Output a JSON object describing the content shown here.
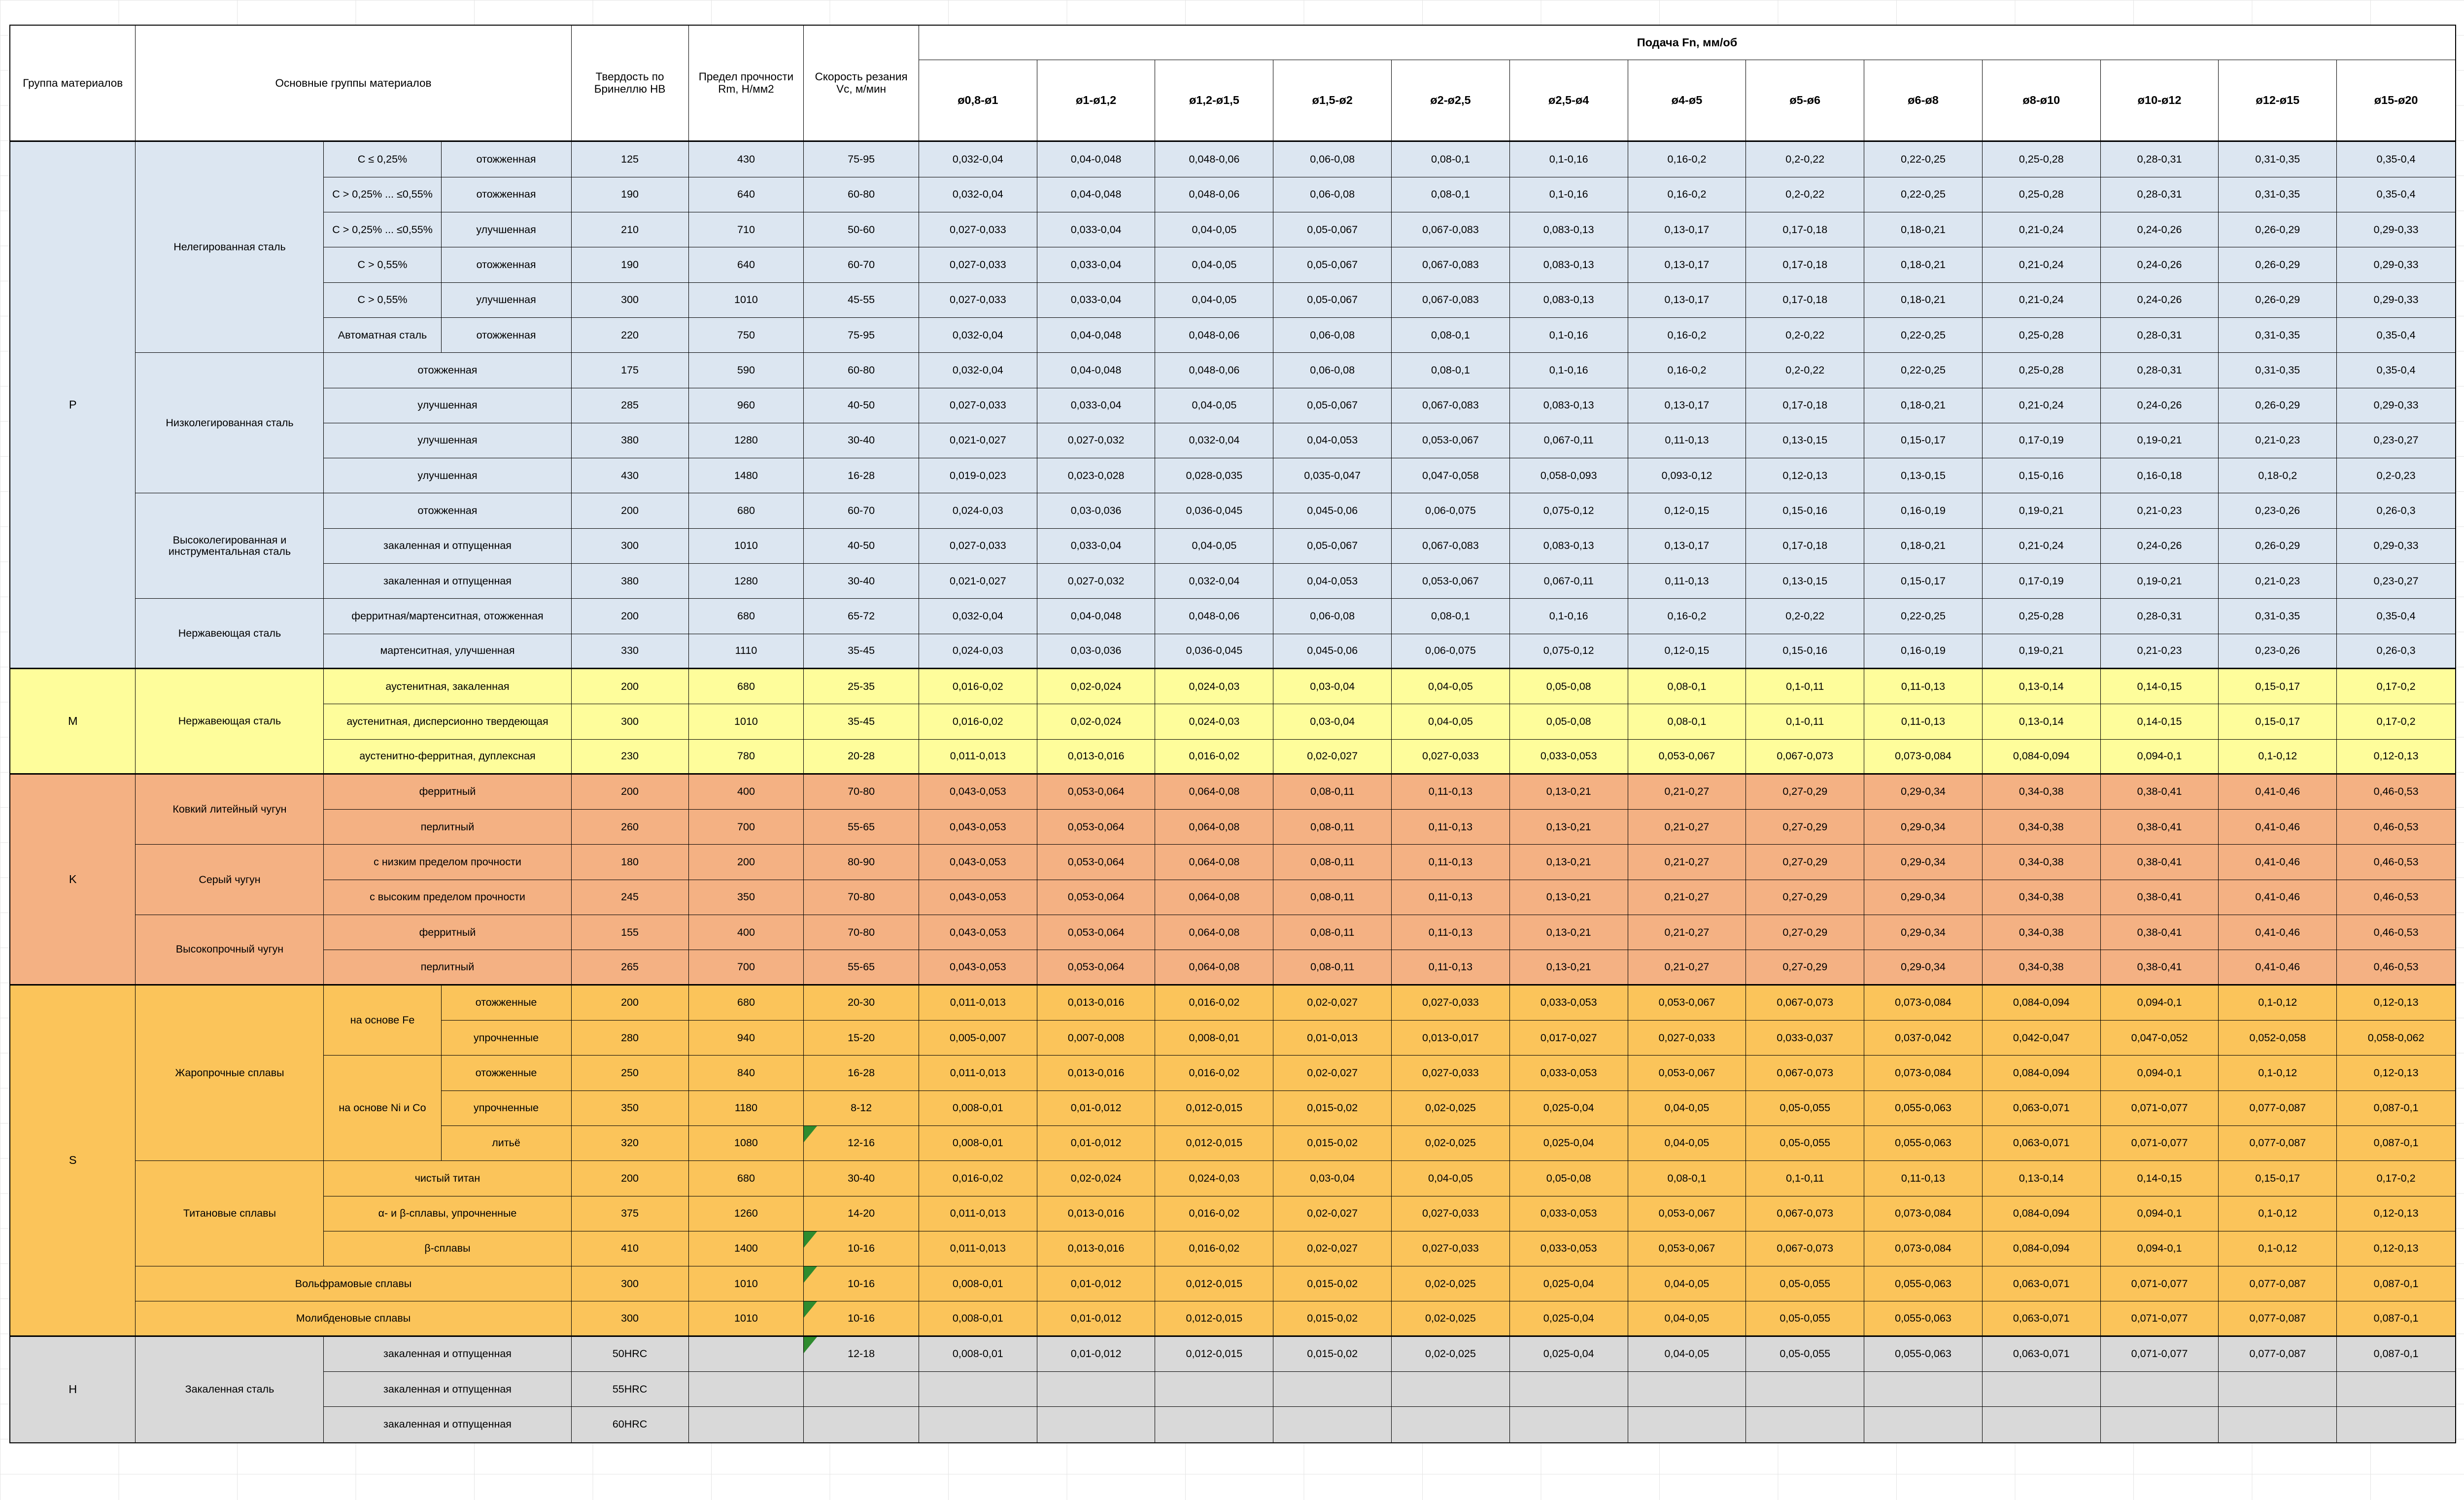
{
  "sheet": {
    "header": {
      "group_col": "Группа материалов",
      "materials_col": "Основные группы материалов",
      "hb_col": "Твердость по Бринеллю HB",
      "rm_col": "Предел прочности Rm, Н/мм2",
      "vc_col": "Скорость резания Vc, м/мин",
      "feed_title": "Подача Fn, мм/об",
      "diameters": [
        "ø0,8-ø1",
        "ø1-ø1,2",
        "ø1,2-ø1,5",
        "ø1,5-ø2",
        "ø2-ø2,5",
        "ø2,5-ø4",
        "ø4-ø5",
        "ø5-ø6",
        "ø6-ø8",
        "ø8-ø10",
        "ø10-ø12",
        "ø12-ø15",
        "ø15-ø20"
      ]
    },
    "colors": {
      "group_P": "#DCE6F1",
      "group_M": "#FEFD9B",
      "group_K": "#F4B183",
      "group_S": "#FBC45A",
      "group_H": "#D9D9D9",
      "border": "#000000",
      "margin_grid": "#e4e4e4",
      "error_flag": "#2E8B2E"
    },
    "feed_patterns": {
      "A": [
        "0,032-0,04",
        "0,04-0,048",
        "0,048-0,06",
        "0,06-0,08",
        "0,08-0,1",
        "0,1-0,16",
        "0,16-0,2",
        "0,2-0,22",
        "0,22-0,25",
        "0,25-0,28",
        "0,28-0,31",
        "0,31-0,35",
        "0,35-0,4"
      ],
      "B": [
        "0,027-0,033",
        "0,033-0,04",
        "0,04-0,05",
        "0,05-0,067",
        "0,067-0,083",
        "0,083-0,13",
        "0,13-0,17",
        "0,17-0,18",
        "0,18-0,21",
        "0,21-0,24",
        "0,24-0,26",
        "0,26-0,29",
        "0,29-0,33"
      ],
      "C": [
        "0,021-0,027",
        "0,027-0,032",
        "0,032-0,04",
        "0,04-0,053",
        "0,053-0,067",
        "0,067-0,11",
        "0,11-0,13",
        "0,13-0,15",
        "0,15-0,17",
        "0,17-0,19",
        "0,19-0,21",
        "0,21-0,23",
        "0,23-0,27"
      ],
      "D10": [
        "0,019-0,023",
        "0,023-0,028",
        "0,028-0,035",
        "0,035-0,047",
        "0,047-0,058",
        "0,058-0,093",
        "0,093-0,12",
        "0,12-0,13",
        "0,13-0,15",
        "0,15-0,16",
        "0,16-0,18",
        "0,18-0,2",
        "0,2-0,23"
      ],
      "Dv": [
        "0,024-0,03",
        "0,03-0,036",
        "0,036-0,045",
        "0,045-0,06",
        "0,06-0,075",
        "0,075-0,12",
        "0,12-0,15",
        "0,15-0,16",
        "0,16-0,19",
        "0,19-0,21",
        "0,21-0,23",
        "0,23-0,26",
        "0,26-0,3"
      ],
      "E": [
        "0,016-0,02",
        "0,02-0,024",
        "0,024-0,03",
        "0,03-0,04",
        "0,04-0,05",
        "0,05-0,08",
        "0,08-0,1",
        "0,1-0,11",
        "0,11-0,13",
        "0,13-0,14",
        "0,14-0,15",
        "0,15-0,17",
        "0,17-0,2"
      ],
      "F": [
        "0,011-0,013",
        "0,013-0,016",
        "0,016-0,02",
        "0,02-0,027",
        "0,027-0,033",
        "0,033-0,053",
        "0,053-0,067",
        "0,067-0,073",
        "0,073-0,084",
        "0,084-0,094",
        "0,094-0,1",
        "0,1-0,12",
        "0,12-0,13"
      ],
      "G": [
        "0,043-0,053",
        "0,053-0,064",
        "0,064-0,08",
        "0,08-0,11",
        "0,11-0,13",
        "0,13-0,21",
        "0,21-0,27",
        "0,27-0,29",
        "0,29-0,34",
        "0,34-0,38",
        "0,38-0,41",
        "0,41-0,46",
        "0,46-0,53"
      ],
      "S2": [
        "0,005-0,007",
        "0,007-0,008",
        "0,008-0,01",
        "0,01-0,013",
        "0,013-0,017",
        "0,017-0,027",
        "0,027-0,033",
        "0,033-0,037",
        "0,037-0,042",
        "0,042-0,047",
        "0,047-0,052",
        "0,052-0,058",
        "0,058-0,062"
      ],
      "H8": [
        "0,008-0,01",
        "0,01-0,012",
        "0,012-0,015",
        "0,015-0,02",
        "0,02-0,025",
        "0,025-0,04",
        "0,04-0,05",
        "0,05-0,055",
        "0,055-0,063",
        "0,063-0,071",
        "0,071-0,077",
        "0,077-0,087",
        "0,087-0,1"
      ],
      "EMPTY": [
        "",
        "",
        "",
        "",
        "",
        "",
        "",
        "",
        "",
        "",
        "",
        "",
        ""
      ]
    },
    "rows": [
      {
        "g": "P",
        "group": {
          "code": "P",
          "span": 15
        },
        "block": {
          "name": "Нелегированная сталь",
          "span": 6
        },
        "sub": {
          "text": "C ≤ 0,25%",
          "span": 1
        },
        "state": "отожженная",
        "hb": "125",
        "rm": "430",
        "vc": "75-95",
        "feed": "A"
      },
      {
        "g": "P",
        "sub": {
          "text": "C > 0,25% ... ≤0,55%",
          "span": 1
        },
        "state": "отожженная",
        "hb": "190",
        "rm": "640",
        "vc": "60-80",
        "feed": "A"
      },
      {
        "g": "P",
        "sub": {
          "text": "C > 0,25% ... ≤0,55%",
          "span": 1
        },
        "state": "улучшенная",
        "hb": "210",
        "rm": "710",
        "vc": "50-60",
        "feed": "B"
      },
      {
        "g": "P",
        "sub": {
          "text": "C > 0,55%",
          "span": 1
        },
        "state": "отожженная",
        "hb": "190",
        "rm": "640",
        "vc": "60-70",
        "feed": "B"
      },
      {
        "g": "P",
        "sub": {
          "text": "C > 0,55%",
          "span": 1
        },
        "state": "улучшенная",
        "hb": "300",
        "rm": "1010",
        "vc": "45-55",
        "feed": "B"
      },
      {
        "g": "P",
        "sub": {
          "text": "Автоматная сталь",
          "span": 1
        },
        "state": "отожженная",
        "hb": "220",
        "rm": "750",
        "vc": "75-95",
        "feed": "A"
      },
      {
        "g": "P",
        "block": {
          "name": "Низколегированная сталь",
          "span": 4
        },
        "state": "отожженная",
        "merged": true,
        "hb": "175",
        "rm": "590",
        "vc": "60-80",
        "feed": "A"
      },
      {
        "g": "P",
        "state": "улучшенная",
        "merged": true,
        "hb": "285",
        "rm": "960",
        "vc": "40-50",
        "feed": "B"
      },
      {
        "g": "P",
        "state": "улучшенная",
        "merged": true,
        "hb": "380",
        "rm": "1280",
        "vc": "30-40",
        "feed": "C"
      },
      {
        "g": "P",
        "state": "улучшенная",
        "merged": true,
        "hb": "430",
        "rm": "1480",
        "vc": "16-28",
        "feed": "D10"
      },
      {
        "g": "P",
        "block": {
          "name": "Высоколегированная и инструментальная сталь",
          "span": 3
        },
        "state": "отожженная",
        "merged": true,
        "hb": "200",
        "rm": "680",
        "vc": "60-70",
        "feed": "Dv"
      },
      {
        "g": "P",
        "state": "закаленная и отпущенная",
        "merged": true,
        "hb": "300",
        "rm": "1010",
        "vc": "40-50",
        "feed": "B"
      },
      {
        "g": "P",
        "state": "закаленная и отпущенная",
        "merged": true,
        "hb": "380",
        "rm": "1280",
        "vc": "30-40",
        "feed": "C"
      },
      {
        "g": "P",
        "block": {
          "name": "Нержавеющая сталь",
          "span": 2
        },
        "state": "ферритная/мартенситная, отожженная",
        "merged": true,
        "hb": "200",
        "rm": "680",
        "vc": "65-72",
        "feed": "A"
      },
      {
        "g": "P",
        "state": "мартенситная, улучшенная",
        "merged": true,
        "hb": "330",
        "rm": "1110",
        "vc": "35-45",
        "feed": "Dv"
      },
      {
        "g": "M",
        "group": {
          "code": "M",
          "span": 3
        },
        "block": {
          "name": "Нержавеющая сталь",
          "span": 3
        },
        "state": "аустенитная, закаленная",
        "merged": true,
        "hb": "200",
        "rm": "680",
        "vc": "25-35",
        "feed": "E"
      },
      {
        "g": "M",
        "state": "аустенитная, дисперсионно твердеющая",
        "merged": true,
        "hb": "300",
        "rm": "1010",
        "vc": "35-45",
        "feed": "E"
      },
      {
        "g": "M",
        "state": "аустенитно-ферритная, дуплексная",
        "merged": true,
        "hb": "230",
        "rm": "780",
        "vc": "20-28",
        "feed": "F"
      },
      {
        "g": "K",
        "group": {
          "code": "K",
          "span": 6
        },
        "block": {
          "name": "Ковкий литейный чугун",
          "span": 2
        },
        "state": "ферритный",
        "merged": true,
        "hb": "200",
        "rm": "400",
        "vc": "70-80",
        "feed": "G"
      },
      {
        "g": "K",
        "state": "перлитный",
        "merged": true,
        "hb": "260",
        "rm": "700",
        "vc": "55-65",
        "feed": "G"
      },
      {
        "g": "K",
        "block": {
          "name": "Серый чугун",
          "span": 2
        },
        "state": "с низким пределом прочности",
        "merged": true,
        "hb": "180",
        "rm": "200",
        "vc": "80-90",
        "feed": "G"
      },
      {
        "g": "K",
        "state": "с высоким пределом прочности",
        "merged": true,
        "hb": "245",
        "rm": "350",
        "vc": "70-80",
        "feed": "G"
      },
      {
        "g": "K",
        "block": {
          "name": "Высокопрочный чугун",
          "span": 2
        },
        "state": "ферритный",
        "merged": true,
        "hb": "155",
        "rm": "400",
        "vc": "70-80",
        "feed": "G"
      },
      {
        "g": "K",
        "state": "перлитный",
        "merged": true,
        "hb": "265",
        "rm": "700",
        "vc": "55-65",
        "feed": "G"
      },
      {
        "g": "S",
        "group": {
          "code": "S",
          "span": 10
        },
        "block": {
          "name": "Жаропрочные сплавы",
          "span": 5
        },
        "sub": {
          "text": "на основе Fe",
          "span": 2
        },
        "state": "отожженные",
        "hb": "200",
        "rm": "680",
        "vc": "20-30",
        "feed": "F"
      },
      {
        "g": "S",
        "state": "упрочненные",
        "hb": "280",
        "rm": "940",
        "vc": "15-20",
        "feed": "S2"
      },
      {
        "g": "S",
        "sub": {
          "text": "на основе Ni и Co",
          "span": 3
        },
        "state": "отожженные",
        "hb": "250",
        "rm": "840",
        "vc": "16-28",
        "feed": "F"
      },
      {
        "g": "S",
        "state": "упрочненные",
        "hb": "350",
        "rm": "1180",
        "vc": "8-12",
        "feed": "H8"
      },
      {
        "g": "S",
        "state": "литьё",
        "hb": "320",
        "rm": "1080",
        "vc": "12-16",
        "flag": true,
        "feed": "H8"
      },
      {
        "g": "S",
        "block": {
          "name": "Титановые сплавы",
          "span": 3
        },
        "state": "чистый титан",
        "merged": true,
        "hb": "200",
        "rm": "680",
        "vc": "30-40",
        "feed": "E"
      },
      {
        "g": "S",
        "state": "α- и β-сплавы, упрочненные",
        "merged": true,
        "hb": "375",
        "rm": "1260",
        "vc": "14-20",
        "feed": "F"
      },
      {
        "g": "S",
        "state": "β-сплавы",
        "merged": true,
        "hb": "410",
        "rm": "1400",
        "vc": "10-16",
        "flag": true,
        "feed": "F"
      },
      {
        "g": "S",
        "block": {
          "name": "Вольфрамовые сплавы",
          "span": 1,
          "cols": 3
        },
        "hb": "300",
        "rm": "1010",
        "vc": "10-16",
        "flag": true,
        "feed": "H8"
      },
      {
        "g": "S",
        "block": {
          "name": "Молибденовые сплавы",
          "span": 1,
          "cols": 3
        },
        "hb": "300",
        "rm": "1010",
        "vc": "10-16",
        "flag": true,
        "feed": "H8"
      },
      {
        "g": "H",
        "group": {
          "code": "H",
          "span": 3
        },
        "block": {
          "name": "Закаленная сталь",
          "span": 3
        },
        "state": "закаленная и отпущенная",
        "merged": true,
        "hb": "50HRC",
        "rm": "",
        "vc": "12-18",
        "flag": true,
        "feed": "H8"
      },
      {
        "g": "H",
        "state": "закаленная и отпущенная",
        "merged": true,
        "hb": "55HRC",
        "rm": "",
        "vc": "",
        "feed": "EMPTY"
      },
      {
        "g": "H",
        "state": "закаленная и отпущенная",
        "merged": true,
        "hb": "60HRC",
        "rm": "",
        "vc": "",
        "feed": "EMPTY"
      }
    ]
  }
}
